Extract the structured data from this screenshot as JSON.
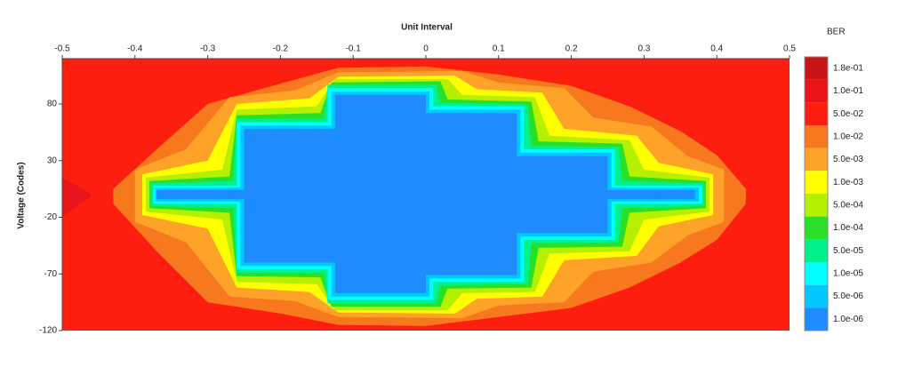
{
  "chart_data": {
    "type": "contour",
    "title": "Unit Interval",
    "ylabel": "Voltage (Codes)",
    "xlim": [
      -0.5,
      0.5
    ],
    "ylim": [
      -120,
      120
    ],
    "xticks": [
      -0.5,
      -0.4,
      -0.3,
      -0.2,
      -0.1,
      0,
      0.1,
      0.2,
      0.3,
      0.4,
      0.5
    ],
    "yticks": [
      80,
      30,
      -20,
      -70,
      -120
    ],
    "background_ber": 0.05,
    "colorbar": {
      "title": "BER",
      "levels": [
        {
          "value": 0.18,
          "label": "1.8e-01",
          "color": "#c81414"
        },
        {
          "value": 0.1,
          "label": "1.0e-01",
          "color": "#e8141a"
        },
        {
          "value": 0.05,
          "label": "5.0e-02",
          "color": "#fe1e10"
        },
        {
          "value": 0.01,
          "label": "1.0e-02",
          "color": "#f8781e"
        },
        {
          "value": 0.005,
          "label": "5.0e-03",
          "color": "#ffa228"
        },
        {
          "value": 0.001,
          "label": "1.0e-03",
          "color": "#ffff00"
        },
        {
          "value": 0.0005,
          "label": "5.0e-04",
          "color": "#b4f000"
        },
        {
          "value": 0.0001,
          "label": "1.0e-04",
          "color": "#28e028"
        },
        {
          "value": 5e-05,
          "label": "5.0e-05",
          "color": "#00f08c"
        },
        {
          "value": 1e-05,
          "label": "1.0e-05",
          "color": "#00ffff"
        },
        {
          "value": 5e-06,
          "label": "5.0e-06",
          "color": "#00c8ff"
        },
        {
          "value": 1e-06,
          "label": "1.0e-06",
          "color": "#1e8cff"
        }
      ]
    },
    "regions": [
      {
        "ber": 0.1,
        "x": [
          -0.5,
          -0.48,
          -0.46
        ],
        "top": [
          15,
          8,
          0
        ],
        "bottom": [
          -20,
          -10,
          -2
        ]
      },
      {
        "ber": 0.01,
        "x": [
          -0.43,
          -0.37,
          -0.3,
          -0.2,
          -0.12,
          0.0,
          0.1,
          0.2,
          0.28,
          0.35,
          0.4,
          0.44
        ],
        "top": [
          5,
          40,
          80,
          98,
          112,
          113,
          106,
          96,
          78,
          56,
          35,
          5
        ],
        "bottom": [
          -8,
          -50,
          -95,
          -105,
          -115,
          -116,
          -108,
          -100,
          -82,
          -60,
          -40,
          -8
        ]
      },
      {
        "ber": 0.005,
        "x": [
          -0.4,
          -0.33,
          -0.27,
          -0.18,
          -0.12,
          0.05,
          0.1,
          0.19,
          0.23,
          0.31,
          0.36,
          0.41
        ],
        "top": [
          22,
          40,
          86,
          92,
          108,
          109,
          99,
          94,
          68,
          60,
          34,
          22
        ],
        "bottom": [
          -24,
          -42,
          -90,
          -94,
          -108,
          -109,
          -98,
          -95,
          -68,
          -60,
          -36,
          -24
        ]
      },
      {
        "ber": 0.001,
        "x": [
          -0.39,
          -0.3,
          -0.26,
          -0.16,
          -0.12,
          0.04,
          0.07,
          0.16,
          0.19,
          0.29,
          0.32,
          0.395
        ],
        "top": [
          18,
          30,
          80,
          85,
          104,
          105,
          93,
          90,
          58,
          52,
          28,
          18
        ],
        "bottom": [
          -18,
          -30,
          -82,
          -86,
          -104,
          -105,
          -92,
          -90,
          -58,
          -54,
          -28,
          -18
        ]
      },
      {
        "ber": 0.0005,
        "x": [
          -0.385,
          -0.28,
          -0.26,
          -0.15,
          -0.125,
          0.03,
          0.05,
          0.15,
          0.17,
          0.28,
          0.3,
          0.39
        ],
        "top": [
          15,
          22,
          75,
          78,
          102,
          102,
          88,
          86,
          52,
          48,
          22,
          15
        ],
        "bottom": [
          -15,
          -22,
          -77,
          -79,
          -102,
          -102,
          -87,
          -86,
          -52,
          -50,
          -22,
          -15
        ]
      },
      {
        "ber": 0.0001,
        "x": [
          -0.38,
          -0.27,
          -0.26,
          -0.145,
          -0.13,
          0.02,
          0.03,
          0.145,
          0.155,
          0.27,
          0.28,
          0.385
        ],
        "top": [
          12,
          16,
          70,
          72,
          99,
          100,
          84,
          82,
          47,
          45,
          16,
          12
        ],
        "bottom": [
          -12,
          -16,
          -72,
          -73,
          -99,
          -99,
          -83,
          -82,
          -47,
          -46,
          -16,
          -12
        ]
      },
      {
        "ber": 5e-05,
        "x": [
          -0.378,
          -0.265,
          -0.26,
          -0.14,
          -0.135,
          0.015,
          0.02,
          0.14,
          0.145,
          0.265,
          0.27,
          0.383
        ],
        "top": [
          10,
          12,
          67,
          67,
          97,
          97,
          81,
          80,
          43,
          42,
          12,
          10
        ],
        "bottom": [
          -10,
          -12,
          -69,
          -69,
          -96,
          -96,
          -80,
          -79,
          -43,
          -42,
          -12,
          -10
        ]
      },
      {
        "ber": 1e-05,
        "x": [
          -0.375,
          -0.26,
          -0.26,
          -0.135,
          -0.135,
          0.01,
          0.01,
          0.135,
          0.135,
          0.26,
          0.26,
          0.38
        ],
        "top": [
          8,
          8,
          64,
          64,
          94,
          94,
          78,
          78,
          40,
          40,
          8,
          8
        ],
        "bottom": [
          -8,
          -8,
          -66,
          -66,
          -93,
          -93,
          -77,
          -77,
          -40,
          -40,
          -8,
          -8
        ]
      },
      {
        "ber": 5e-06,
        "x": [
          -0.372,
          -0.255,
          -0.255,
          -0.13,
          -0.13,
          0.005,
          0.005,
          0.13,
          0.13,
          0.255,
          0.255,
          0.375
        ],
        "top": [
          6,
          6,
          61,
          61,
          91,
          91,
          75,
          75,
          37,
          37,
          6,
          6
        ],
        "bottom": [
          -6,
          -6,
          -63,
          -63,
          -90,
          -90,
          -74,
          -74,
          -37,
          -37,
          -6,
          -6
        ]
      },
      {
        "ber": 1e-06,
        "x": [
          -0.37,
          -0.25,
          -0.25,
          -0.125,
          -0.125,
          0,
          0,
          0.125,
          0.125,
          0.25,
          0.25,
          0.37
        ],
        "top": [
          4,
          4,
          58,
          58,
          88,
          88,
          72,
          72,
          34,
          34,
          4,
          4
        ],
        "bottom": [
          -4,
          -4,
          -60,
          -60,
          -87,
          -87,
          -71,
          -71,
          -34,
          -34,
          -4,
          -4
        ]
      }
    ]
  }
}
